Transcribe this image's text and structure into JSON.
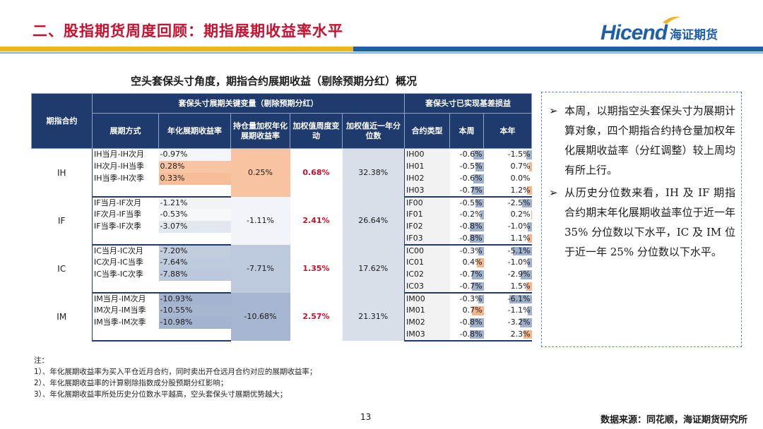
{
  "header": {
    "title": "二、股指期货周度回顾：期指展期收益率水平",
    "logo_en": "Hicend",
    "logo_cn": "海证期货"
  },
  "table": {
    "caption": "空头套保头寸角度，期指合约展期收益（剔除预期分红）概况",
    "group_header_left": "套保头寸展期关键变量（剔除预期分红）",
    "group_header_right": "套保头寸已实现基差损益",
    "col_contract": "期指合约",
    "col_way": "展期方式",
    "col_annual": "年化展期收益率",
    "col_weighted": "持仓量加权年化展期收益率",
    "col_week_chg": "加权值周度变动",
    "col_pct": "加权值近一年分位数",
    "col_ctype": "合约类型",
    "col_week": "本周",
    "col_year": "本年",
    "groups": [
      {
        "contract": "IH",
        "weighted": "0.25%",
        "week_chg": "0.68%",
        "pct": "32.38%",
        "ways": [
          {
            "name": "IH当月-IH次月",
            "value": "-0.97%",
            "num": -0.97
          },
          {
            "name": "IH次月-IH当季",
            "value": "0.28%",
            "num": 0.28
          },
          {
            "name": "IH当季-IH次季",
            "value": "0.33%",
            "num": 0.33
          }
        ],
        "basis": [
          {
            "type": "IH00",
            "week": "-0.6%",
            "week_num": -0.6,
            "year": "-1.5%",
            "year_num": -1.5
          },
          {
            "type": "IH01",
            "week": "-0.5%",
            "week_num": -0.5,
            "year": "0.7%",
            "year_num": 0.7
          },
          {
            "type": "IH02",
            "week": "-0.6%",
            "week_num": -0.6,
            "year": "0.0%",
            "year_num": 0.0
          },
          {
            "type": "IH03",
            "week": "-0.7%",
            "week_num": -0.7,
            "year": "1.2%",
            "year_num": 1.2
          }
        ]
      },
      {
        "contract": "IF",
        "weighted": "-1.11%",
        "week_chg": "2.41%",
        "pct": "26.64%",
        "ways": [
          {
            "name": "IF当月-IF次月",
            "value": "-1.21%",
            "num": -1.21
          },
          {
            "name": "IF次月-IF当季",
            "value": "-0.53%",
            "num": -0.53
          },
          {
            "name": "IF当季-IF次季",
            "value": "-3.07%",
            "num": -3.07
          }
        ],
        "basis": [
          {
            "type": "IF00",
            "week": "-0.5%",
            "week_num": -0.5,
            "year": "-2.5%",
            "year_num": -2.5
          },
          {
            "type": "IF01",
            "week": "-0.2%",
            "week_num": -0.2,
            "year": "0.2%",
            "year_num": 0.2
          },
          {
            "type": "IF02",
            "week": "-0.8%",
            "week_num": -0.8,
            "year": "-1.0%",
            "year_num": -1.0
          },
          {
            "type": "IF03",
            "week": "-0.8%",
            "week_num": -0.8,
            "year": "1.1%",
            "year_num": 1.1
          }
        ]
      },
      {
        "contract": "IC",
        "weighted": "-7.71%",
        "week_chg": "1.35%",
        "pct": "17.62%",
        "ways": [
          {
            "name": "IC当月-IC次月",
            "value": "-7.20%",
            "num": -7.2
          },
          {
            "name": "IC次月-IC当季",
            "value": "-7.64%",
            "num": -7.64
          },
          {
            "name": "IC当季-IC次季",
            "value": "-7.88%",
            "num": -7.88
          }
        ],
        "basis": [
          {
            "type": "IC00",
            "week": "-0.3%",
            "week_num": -0.3,
            "year": "-5.1%",
            "year_num": -5.1
          },
          {
            "type": "IC01",
            "week": "0.4%",
            "week_num": 0.4,
            "year": "-1.0%",
            "year_num": -1.0
          },
          {
            "type": "IC02",
            "week": "-0.7%",
            "week_num": -0.7,
            "year": "-2.9%",
            "year_num": -2.9
          },
          {
            "type": "IC03",
            "week": "-0.7%",
            "week_num": -0.7,
            "year": "1.5%",
            "year_num": 1.5
          }
        ]
      },
      {
        "contract": "IM",
        "weighted": "-10.68%",
        "week_chg": "2.57%",
        "pct": "21.31%",
        "ways": [
          {
            "name": "IM当月-IM次月",
            "value": "-10.93%",
            "num": -10.93
          },
          {
            "name": "IM次月-IM当季",
            "value": "-10.55%",
            "num": -10.55
          },
          {
            "name": "IM当季-IM次季",
            "value": "-10.98%",
            "num": -10.98
          }
        ],
        "basis": [
          {
            "type": "IM00",
            "week": "-0.3%",
            "week_num": -0.3,
            "year": "-6.1%",
            "year_num": -6.1
          },
          {
            "type": "IM01",
            "week": "0.7%",
            "week_num": 0.7,
            "year": "-1.1%",
            "year_num": -1.1
          },
          {
            "type": "IM02",
            "week": "-0.8%",
            "week_num": -0.8,
            "year": "-3.2%",
            "year_num": -3.2
          },
          {
            "type": "IM03",
            "week": "-0.8%",
            "week_num": -0.8,
            "year": "2.3%",
            "year_num": 2.3
          }
        ]
      }
    ]
  },
  "notes": {
    "head": "注：",
    "n1": "1）、年化展期收益率为买入平仓近月合约，同时卖出开仓远月合约对应的展期收益率；",
    "n2": "2）、年化展期收益率的计算剔除指数成分股预期分红影响；",
    "n3": "3）、年化展期收益率所处历史分位数水平越高，空头套保头寸展期优势越大；"
  },
  "sidebar": {
    "arrow": "➢",
    "p1": "本周，以期指空头套保头寸为展期计算对象，四个期指合约持仓量加权年化展期收益率（分红调整）较上周均有所上行。",
    "p2": "从历史分位数来看，IH 及 IF 期指合约期末年化展期收益率位于近一年 35% 分位数以下水平，IC 及 IM 位于近一年 25% 分位数以下水平。"
  },
  "footer": {
    "page": "13",
    "source": "数据来源：同花顺，海证期货研究所"
  },
  "colors": {
    "title_red": "#c8102e",
    "header_navy": "#1f3b6e",
    "positive_orange": "#f5b48b",
    "negative_blue": "#9fb0cc",
    "gold_rule": "#f0b323",
    "brand_blue": "#1e5fa8"
  }
}
